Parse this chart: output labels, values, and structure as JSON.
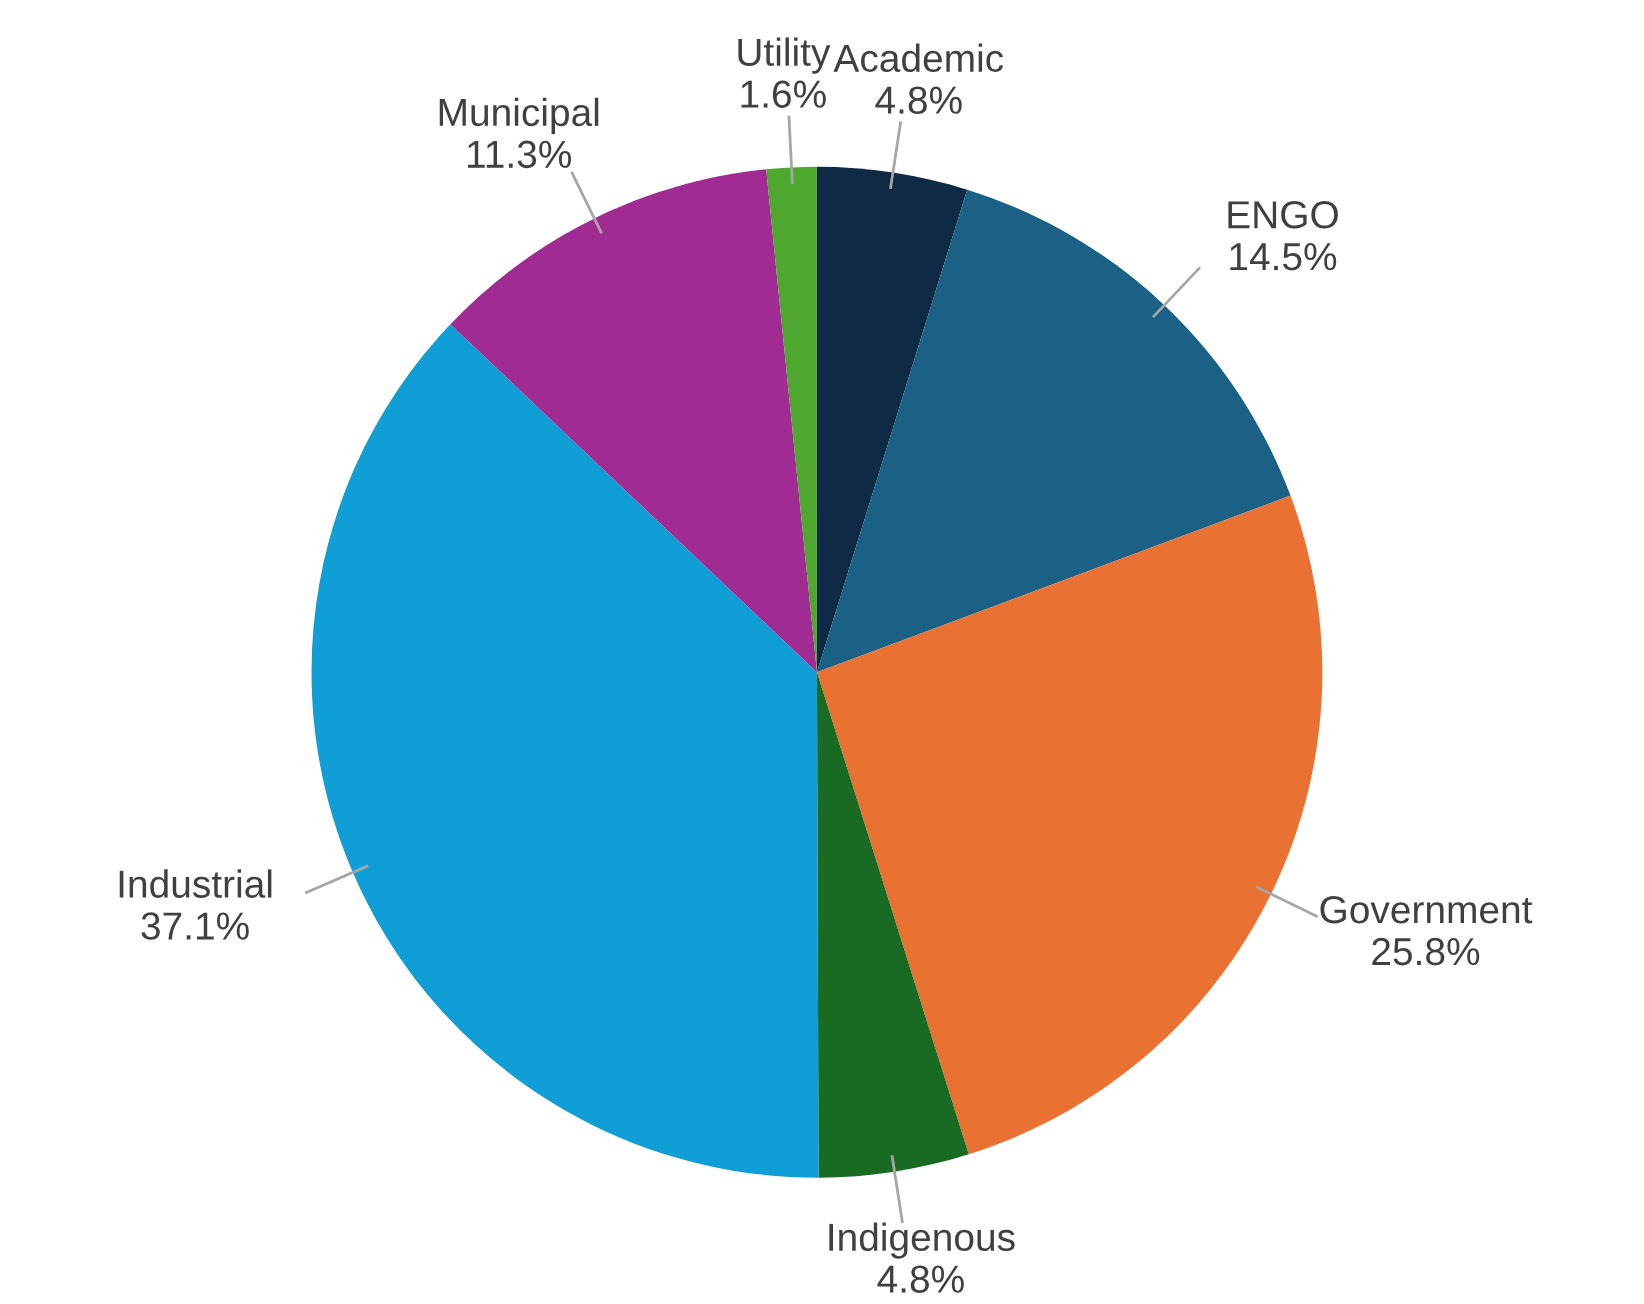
{
  "chart_data": {
    "type": "pie",
    "categories": [
      "Academic",
      "ENGO",
      "Government",
      "Indigenous",
      "Industrial",
      "Municipal",
      "Utility"
    ],
    "values": [
      4.8,
      14.5,
      25.8,
      4.8,
      37.1,
      11.3,
      1.6
    ],
    "value_labels": [
      "4.8%",
      "14.5%",
      "25.8%",
      "4.8%",
      "37.1%",
      "11.3%",
      "1.6%"
    ],
    "colors": [
      "#0f2a44",
      "#1a6185",
      "#e97132",
      "#196b24",
      "#0f9ed5",
      "#a02b93",
      "#4ea72e"
    ],
    "legend": false
  }
}
